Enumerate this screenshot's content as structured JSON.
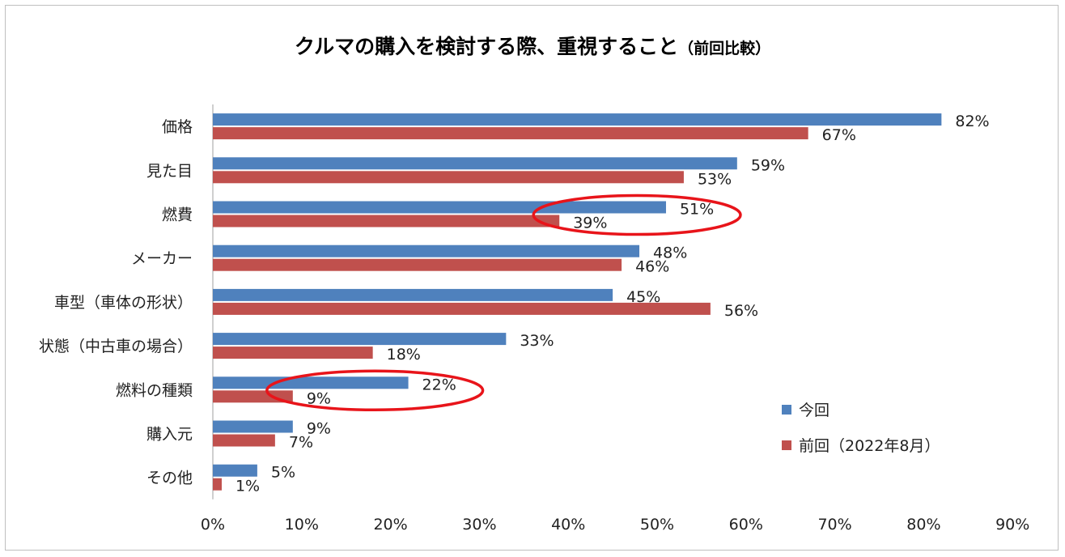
{
  "chart_data": {
    "type": "bar",
    "orientation": "horizontal",
    "title": "クルマの購入を検討する際、重視すること",
    "subtitle": "（前回比較）",
    "categories": [
      "価格",
      "見た目",
      "燃費",
      "メーカー",
      "車型（車体の形状）",
      "状態（中古車の場合）",
      "燃料の種類",
      "購入元",
      "その他"
    ],
    "series": [
      {
        "name": "今回",
        "color": "#4f81bd",
        "values": [
          82,
          59,
          51,
          48,
          45,
          33,
          22,
          9,
          5
        ]
      },
      {
        "name": "前回（2022年8月）",
        "color": "#c0504d",
        "values": [
          67,
          53,
          39,
          46,
          56,
          18,
          9,
          7,
          1
        ]
      }
    ],
    "xlim": [
      0,
      90
    ],
    "xticks": [
      "0%",
      "10%",
      "20%",
      "30%",
      "40%",
      "50%",
      "60%",
      "70%",
      "80%",
      "90%"
    ],
    "value_suffix": "%",
    "legend": "right",
    "grid": false,
    "highlight_color": "#e8141a",
    "highlights": [
      "燃費",
      "燃料の種類"
    ]
  }
}
